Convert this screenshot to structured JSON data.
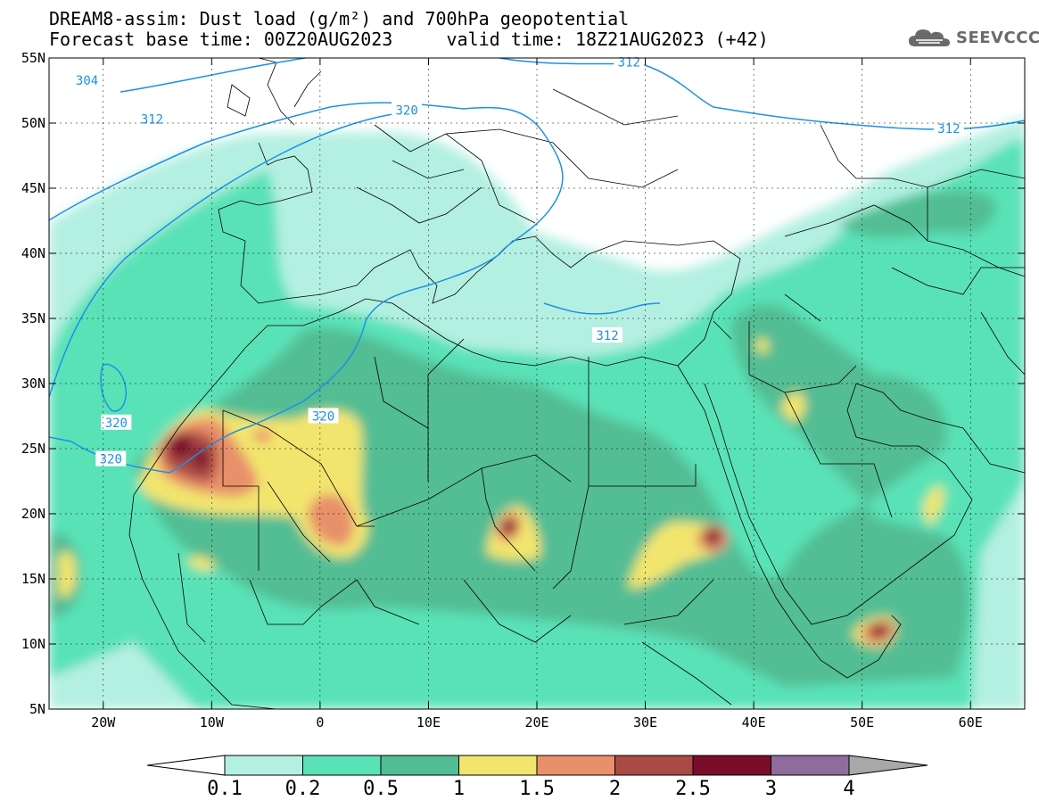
{
  "title_line1": "DREAM8-assim: Dust load (g/m²) and 700hPa geopotential",
  "title_line2": "Forecast base time: 00Z20AUG2023     valid time: 18Z21AUG2023 (+42)",
  "logo": {
    "text": "SEEVCCC",
    "color": "#6a6a6a",
    "icon": "cloud-icon"
  },
  "map": {
    "lon_range": [
      -25,
      65
    ],
    "lat_range": [
      5,
      55
    ],
    "lat_ticks": [
      {
        "v": 55,
        "label": "55N"
      },
      {
        "v": 50,
        "label": "50N"
      },
      {
        "v": 45,
        "label": "45N"
      },
      {
        "v": 40,
        "label": "40N"
      },
      {
        "v": 35,
        "label": "35N"
      },
      {
        "v": 30,
        "label": "30N"
      },
      {
        "v": 25,
        "label": "25N"
      },
      {
        "v": 20,
        "label": "20N"
      },
      {
        "v": 15,
        "label": "15N"
      },
      {
        "v": 10,
        "label": "10N"
      },
      {
        "v": 5,
        "label": "5N"
      }
    ],
    "lon_ticks": [
      {
        "v": -20,
        "label": "20W"
      },
      {
        "v": -10,
        "label": "10W"
      },
      {
        "v": 0,
        "label": "0"
      },
      {
        "v": 10,
        "label": "10E"
      },
      {
        "v": 20,
        "label": "20E"
      },
      {
        "v": 30,
        "label": "30E"
      },
      {
        "v": 40,
        "label": "40E"
      },
      {
        "v": 50,
        "label": "50E"
      },
      {
        "v": 60,
        "label": "60E"
      }
    ],
    "contour_color": "#1e90e6",
    "contour_labels": [
      {
        "text": "304",
        "lon": -21.5,
        "lat": 53.3
      },
      {
        "text": "312",
        "lon": -15.5,
        "lat": 50.3
      },
      {
        "text": "320",
        "lon": 8.0,
        "lat": 51.0
      },
      {
        "text": "312",
        "lon": 28.5,
        "lat": 54.7
      },
      {
        "text": "312",
        "lon": 58.0,
        "lat": 49.6
      },
      {
        "text": "312",
        "lon": 26.5,
        "lat": 33.7
      },
      {
        "text": "320",
        "lon": -18.8,
        "lat": 27.0
      },
      {
        "text": "320",
        "lon": 0.3,
        "lat": 27.5
      },
      {
        "text": "320",
        "lon": -19.3,
        "lat": 24.2
      }
    ]
  },
  "colorbar": {
    "colors": [
      "#b4f0e1",
      "#5ae2b7",
      "#52bd94",
      "#f2e56e",
      "#e8906a",
      "#ab4a44",
      "#7a0d2a",
      "#8e6c9e"
    ],
    "under_color": "#ffffff",
    "over_color": "#a8a8a8",
    "labels": [
      "0.1",
      "0.2",
      "0.5",
      "1",
      "1.5",
      "2",
      "2.5",
      "3",
      "4"
    ]
  }
}
